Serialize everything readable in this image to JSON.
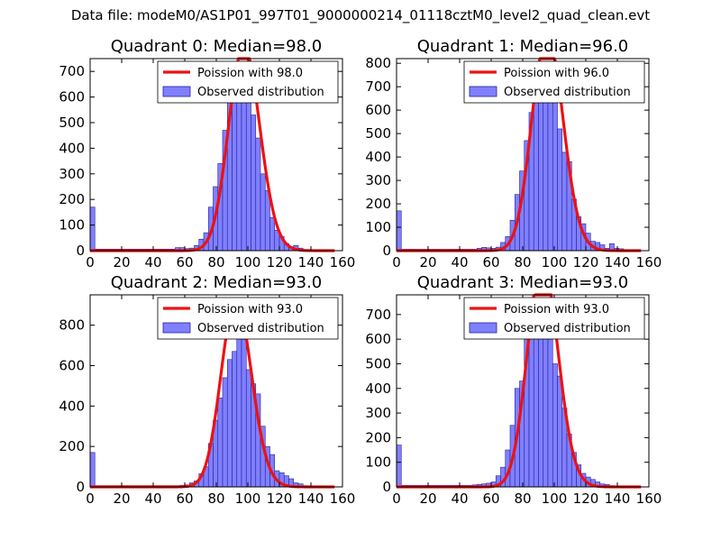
{
  "suptitle": "Data file: modeM0/AS1P01_997T01_9000000214_01118cztM0_level2_quad_clean.evt",
  "colors": {
    "hist_fill": "#8080ff",
    "hist_edge": "#2020a0",
    "fit_line": "#ee1111",
    "axis": "#000000"
  },
  "chart_data": [
    {
      "type": "bar",
      "title": "Quadrant 0: Median=98.0",
      "xlim": [
        0,
        160
      ],
      "ylim": [
        0,
        750
      ],
      "xticks": [
        "0",
        "20",
        "40",
        "60",
        "80",
        "100",
        "120",
        "140",
        "160"
      ],
      "yticks": [
        0,
        100,
        200,
        300,
        400,
        500,
        600,
        700
      ],
      "bin_width": 3,
      "bins_start": [
        0,
        3,
        6,
        9,
        12,
        15,
        18,
        21,
        24,
        27,
        30,
        33,
        36,
        39,
        42,
        45,
        48,
        51,
        54,
        57,
        60,
        63,
        66,
        69,
        72,
        75,
        78,
        81,
        84,
        87,
        90,
        93,
        96,
        99,
        102,
        105,
        108,
        111,
        114,
        117,
        120,
        123,
        126,
        129,
        132,
        135,
        138,
        141,
        144,
        147,
        150
      ],
      "counts": [
        170,
        6,
        6,
        6,
        6,
        6,
        6,
        6,
        6,
        6,
        6,
        6,
        6,
        6,
        6,
        6,
        6,
        6,
        12,
        12,
        8,
        10,
        20,
        45,
        70,
        170,
        250,
        340,
        470,
        580,
        620,
        590,
        690,
        600,
        530,
        440,
        300,
        235,
        130,
        80,
        55,
        28,
        15,
        20,
        10,
        4,
        3,
        3,
        2,
        1,
        0
      ],
      "poisson_mean": 98.0,
      "legend": [
        "Poission with 98.0",
        "Observed distribution"
      ]
    },
    {
      "type": "bar",
      "title": "Quadrant 1: Median=96.0",
      "xlim": [
        0,
        160
      ],
      "ylim": [
        0,
        820
      ],
      "xticks": [
        "0",
        "20",
        "40",
        "60",
        "80",
        "100",
        "120",
        "140",
        "160"
      ],
      "yticks": [
        0,
        100,
        200,
        300,
        400,
        500,
        600,
        700,
        800
      ],
      "bin_width": 3,
      "bins_start": [
        0,
        3,
        6,
        9,
        12,
        15,
        18,
        21,
        24,
        27,
        30,
        33,
        36,
        39,
        42,
        45,
        48,
        51,
        54,
        57,
        60,
        63,
        66,
        69,
        72,
        75,
        78,
        81,
        84,
        87,
        90,
        93,
        96,
        99,
        102,
        105,
        108,
        111,
        114,
        117,
        120,
        123,
        126,
        129,
        132,
        135,
        138,
        141,
        144,
        147,
        150
      ],
      "counts": [
        170,
        6,
        6,
        6,
        6,
        6,
        6,
        6,
        6,
        6,
        6,
        6,
        6,
        6,
        6,
        6,
        6,
        10,
        14,
        12,
        10,
        15,
        35,
        60,
        130,
        240,
        340,
        470,
        590,
        640,
        700,
        720,
        710,
        680,
        520,
        420,
        380,
        220,
        145,
        115,
        75,
        40,
        35,
        25,
        10,
        30,
        10,
        8,
        4,
        2,
        0
      ],
      "poisson_mean": 96.0,
      "legend": [
        "Poission with 96.0",
        "Observed distribution"
      ]
    },
    {
      "type": "bar",
      "title": "Quadrant 2: Median=93.0",
      "xlim": [
        0,
        160
      ],
      "ylim": [
        0,
        950
      ],
      "xticks": [
        "0",
        "20",
        "40",
        "60",
        "80",
        "100",
        "120",
        "140",
        "160"
      ],
      "yticks": [
        0,
        200,
        400,
        600,
        800
      ],
      "bin_width": 3,
      "bins_start": [
        0,
        3,
        6,
        9,
        12,
        15,
        18,
        21,
        24,
        27,
        30,
        33,
        36,
        39,
        42,
        45,
        48,
        51,
        54,
        57,
        60,
        63,
        66,
        69,
        72,
        75,
        78,
        81,
        84,
        87,
        90,
        93,
        96,
        99,
        102,
        105,
        108,
        111,
        114,
        117,
        120,
        123,
        126,
        129,
        132,
        135,
        138,
        141,
        144,
        147,
        150
      ],
      "counts": [
        170,
        6,
        6,
        6,
        6,
        6,
        6,
        6,
        6,
        6,
        6,
        6,
        6,
        6,
        6,
        6,
        6,
        6,
        6,
        8,
        10,
        20,
        30,
        65,
        100,
        215,
        330,
        440,
        540,
        630,
        670,
        870,
        730,
        580,
        510,
        460,
        300,
        200,
        160,
        80,
        70,
        55,
        40,
        20,
        15,
        6,
        5,
        4,
        3,
        2,
        0
      ],
      "poisson_mean": 93.0,
      "legend": [
        "Poission with 93.0",
        "Observed distribution"
      ]
    },
    {
      "type": "bar",
      "title": "Quadrant 3: Median=93.0",
      "xlim": [
        0,
        160
      ],
      "ylim": [
        0,
        780
      ],
      "xticks": [
        "0",
        "20",
        "40",
        "60",
        "80",
        "100",
        "120",
        "140",
        "160"
      ],
      "yticks": [
        0,
        100,
        200,
        300,
        400,
        500,
        600,
        700
      ],
      "bin_width": 3,
      "bins_start": [
        0,
        3,
        6,
        9,
        12,
        15,
        18,
        21,
        24,
        27,
        30,
        33,
        36,
        39,
        42,
        45,
        48,
        51,
        54,
        57,
        60,
        63,
        66,
        69,
        72,
        75,
        78,
        81,
        84,
        87,
        90,
        93,
        96,
        99,
        102,
        105,
        108,
        111,
        114,
        117,
        120,
        123,
        126,
        129,
        132,
        135,
        138,
        141,
        144,
        147,
        150
      ],
      "counts": [
        170,
        6,
        6,
        6,
        6,
        6,
        6,
        6,
        6,
        6,
        6,
        6,
        6,
        6,
        6,
        6,
        8,
        10,
        12,
        15,
        20,
        45,
        80,
        150,
        250,
        400,
        430,
        600,
        620,
        650,
        640,
        700,
        600,
        500,
        450,
        320,
        215,
        140,
        90,
        55,
        40,
        30,
        20,
        12,
        10,
        5,
        3,
        2,
        1,
        0,
        0
      ],
      "poisson_mean": 93.0,
      "legend": [
        "Poission with 93.0",
        "Observed distribution"
      ]
    }
  ]
}
